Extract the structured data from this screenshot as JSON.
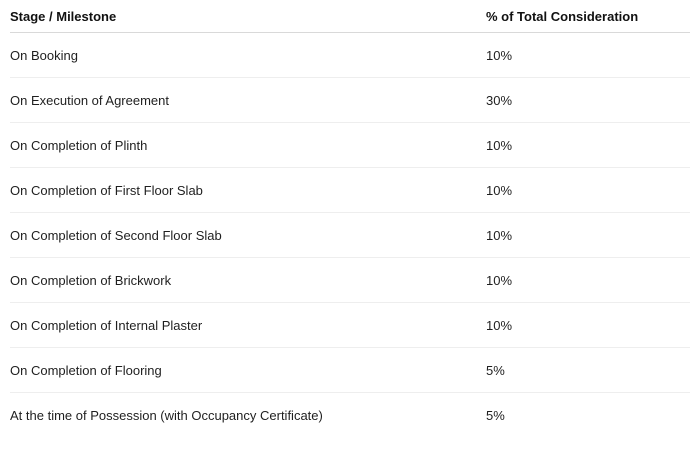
{
  "table": {
    "headers": [
      "Stage / Milestone",
      "% of Total Consideration"
    ],
    "rows": [
      [
        "On Booking",
        "10%"
      ],
      [
        "On Execution of Agreement",
        "30%"
      ],
      [
        "On Completion of Plinth",
        "10%"
      ],
      [
        "On Completion of First Floor Slab",
        "10%"
      ],
      [
        "On Completion of Second Floor Slab",
        "10%"
      ],
      [
        "On Completion of Brickwork",
        "10%"
      ],
      [
        "On Completion of Internal Plaster",
        "10%"
      ],
      [
        "On Completion of Flooring",
        "5%"
      ],
      [
        "At the time of Possession (with Occupancy Certificate)",
        "5%"
      ]
    ]
  }
}
